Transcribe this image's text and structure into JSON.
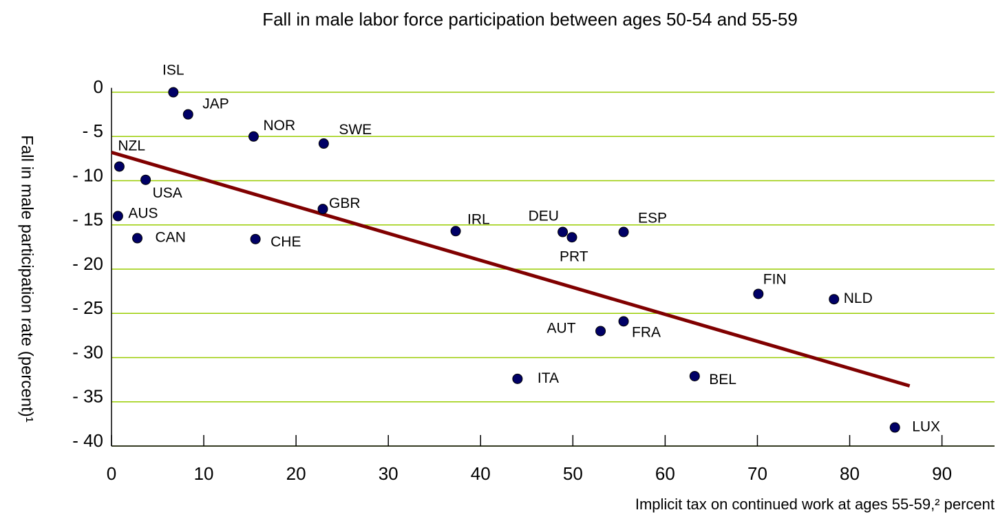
{
  "chart_data": {
    "type": "scatter",
    "title": "Fall in male labor force participation between ages 50-54 and 55-59",
    "x_label": "Implicit tax on continued work at ages 55-59,² percent",
    "y_label": "Fall in male participation rate (percent)¹",
    "labels": [
      "ISL",
      "JAP",
      "NOR",
      "SWE",
      "NZL",
      "USA",
      "AUS",
      "CAN",
      "CHE",
      "GBR",
      "IRL",
      "DEU",
      "PRT",
      "ESP",
      "FIN",
      "NLD",
      "AUT",
      "FRA",
      "ITA",
      "BEL",
      "LUX"
    ],
    "x": [
      6.7,
      8.3,
      15.4,
      23.0,
      0.85,
      3.7,
      0.7,
      2.8,
      15.6,
      22.9,
      37.3,
      48.9,
      49.9,
      55.5,
      70.1,
      78.3,
      53.0,
      55.5,
      44.0,
      63.2,
      84.9
    ],
    "values": [
      0,
      -2.5,
      -5.0,
      -5.8,
      -8.4,
      -9.9,
      -14.0,
      -16.5,
      -16.6,
      -13.2,
      -15.7,
      -15.8,
      -16.4,
      -15.8,
      -22.8,
      -23.4,
      -27.0,
      -25.9,
      -32.4,
      -32.1,
      -37.9
    ],
    "color": "#000066",
    "trendline": {
      "x": [
        0,
        86.5
      ],
      "y": [
        -6.8,
        -33.2
      ],
      "color": "#800000"
    },
    "xlim": [
      0,
      95.7
    ],
    "ylim": [
      -40,
      0.5
    ],
    "xticks": [
      0,
      10,
      20,
      30,
      40,
      50,
      60,
      70,
      80,
      90
    ],
    "yticks": [
      0,
      {
        "value": -5,
        "label": "- 5"
      },
      {
        "value": -10,
        "label": "- 10"
      },
      {
        "value": -15,
        "label": "- 15"
      },
      {
        "value": -20,
        "label": "- 20"
      },
      {
        "value": -25,
        "label": "- 25"
      },
      {
        "value": -30,
        "label": "- 30"
      },
      {
        "value": -35,
        "label": "- 35"
      },
      {
        "value": -40,
        "label": "- 40"
      }
    ],
    "grid": true,
    "grid_color": "#99cc00"
  }
}
